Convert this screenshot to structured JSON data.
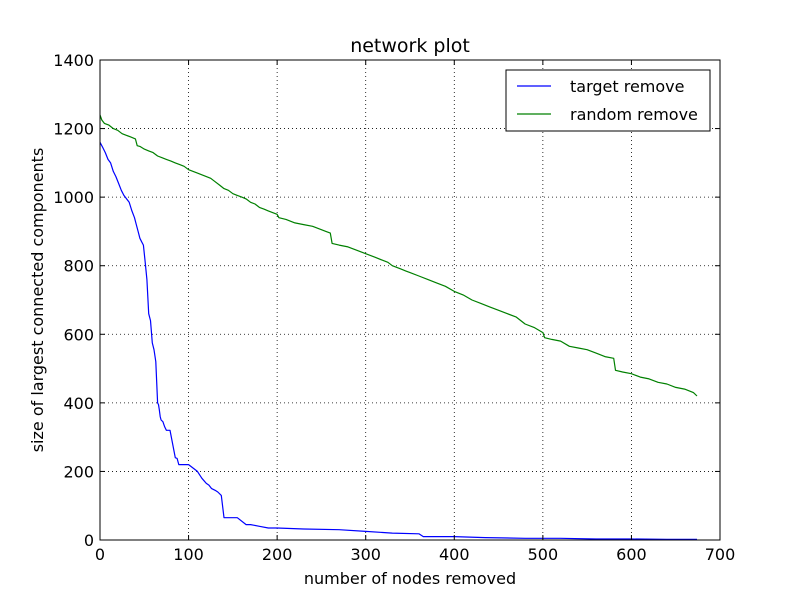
{
  "chart_data": {
    "type": "line",
    "title": "network plot",
    "xlabel": "number of nodes removed",
    "ylabel": "size of largest connected components",
    "xlim": [
      0,
      700
    ],
    "ylim": [
      0,
      1400
    ],
    "xticks": [
      0,
      100,
      200,
      300,
      400,
      500,
      600,
      700
    ],
    "yticks": [
      0,
      200,
      400,
      600,
      800,
      1000,
      1200,
      1400
    ],
    "grid": true,
    "grid_style": "dotted",
    "legend_position": "top-right",
    "series": [
      {
        "name": "target remove",
        "color": "#0000ff",
        "x": [
          0,
          3,
          6,
          9,
          12,
          15,
          18,
          21,
          24,
          27,
          30,
          33,
          36,
          39,
          41,
          43,
          45,
          47,
          49,
          51,
          53,
          55,
          57,
          59,
          61,
          63,
          65,
          66,
          67,
          68,
          69,
          71,
          73,
          75,
          77,
          79,
          85,
          87,
          89,
          93,
          100,
          105,
          110,
          115,
          120,
          123,
          126,
          130,
          133,
          137,
          140,
          142,
          145,
          155,
          165,
          170,
          180,
          190,
          200,
          230,
          270,
          300,
          330,
          360,
          365,
          400,
          435,
          480,
          520,
          560,
          600,
          640,
          674
        ],
        "y": [
          1160,
          1145,
          1130,
          1110,
          1100,
          1075,
          1060,
          1040,
          1020,
          1005,
          995,
          985,
          960,
          940,
          920,
          900,
          880,
          870,
          860,
          810,
          760,
          660,
          640,
          575,
          555,
          520,
          400,
          395,
          380,
          360,
          350,
          345,
          330,
          320,
          320,
          320,
          240,
          238,
          220,
          220,
          220,
          210,
          200,
          180,
          165,
          160,
          150,
          145,
          140,
          130,
          65,
          65,
          65,
          65,
          45,
          45,
          40,
          35,
          35,
          32,
          30,
          25,
          20,
          18,
          10,
          10,
          7,
          5,
          5,
          3,
          3,
          2,
          2
        ]
      },
      {
        "name": "random remove",
        "color": "#008000",
        "x": [
          0,
          2,
          5,
          10,
          15,
          20,
          25,
          30,
          35,
          40,
          42,
          45,
          50,
          55,
          60,
          65,
          70,
          75,
          80,
          85,
          90,
          95,
          100,
          110,
          120,
          125,
          130,
          135,
          140,
          145,
          150,
          155,
          160,
          165,
          170,
          175,
          180,
          185,
          190,
          200,
          202,
          210,
          220,
          230,
          240,
          250,
          255,
          260,
          262,
          270,
          280,
          290,
          300,
          310,
          320,
          325,
          330,
          340,
          345,
          350,
          360,
          370,
          380,
          390,
          400,
          410,
          420,
          430,
          440,
          450,
          460,
          470,
          480,
          490,
          500,
          502,
          510,
          520,
          530,
          540,
          550,
          560,
          570,
          580,
          582,
          590,
          600,
          610,
          620,
          630,
          640,
          650,
          660,
          670,
          674
        ],
        "y": [
          1240,
          1225,
          1215,
          1210,
          1200,
          1195,
          1185,
          1180,
          1175,
          1170,
          1150,
          1148,
          1140,
          1135,
          1130,
          1120,
          1115,
          1110,
          1105,
          1100,
          1095,
          1090,
          1080,
          1070,
          1060,
          1055,
          1045,
          1035,
          1025,
          1020,
          1010,
          1005,
          1000,
          995,
          985,
          980,
          970,
          965,
          960,
          950,
          940,
          935,
          925,
          920,
          915,
          905,
          900,
          895,
          865,
          860,
          855,
          845,
          835,
          825,
          815,
          810,
          800,
          790,
          785,
          780,
          770,
          760,
          750,
          740,
          725,
          715,
          700,
          690,
          680,
          670,
          660,
          650,
          630,
          620,
          605,
          590,
          585,
          580,
          565,
          560,
          555,
          545,
          535,
          530,
          495,
          490,
          485,
          475,
          470,
          460,
          455,
          445,
          440,
          430,
          420
        ]
      }
    ]
  }
}
